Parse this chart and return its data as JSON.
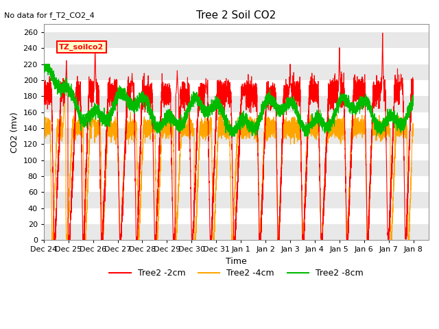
{
  "title": "Tree 2 Soil CO2",
  "no_data_text": "No data for f_T2_CO2_4",
  "legend_label_text": "TZ_soilco2",
  "xlabel": "Time",
  "ylabel": "CO2 (mv)",
  "ylim": [
    0,
    270
  ],
  "yticks": [
    0,
    20,
    40,
    60,
    80,
    100,
    120,
    140,
    160,
    180,
    200,
    220,
    240,
    260
  ],
  "xlim": [
    0,
    375
  ],
  "xtick_positions": [
    0,
    24,
    48,
    72,
    96,
    120,
    144,
    168,
    192,
    216,
    240,
    264,
    288,
    312,
    336,
    360
  ],
  "xtick_labels": [
    "Dec 24",
    "Dec 25",
    "Dec 26",
    "Dec 27",
    "Dec 28",
    "Dec 29",
    "Dec 30",
    "Dec 31",
    "Jan 1",
    "Jan 2",
    "Jan 3",
    "Jan 4",
    "Jan 5",
    "Jan 6",
    "Jan 7",
    "Jan 8"
  ],
  "line_2cm_color": "#ff0000",
  "line_4cm_color": "#ffa500",
  "line_8cm_color": "#00bb00",
  "legend_entries": [
    "Tree2 -2cm",
    "Tree2 -4cm",
    "Tree2 -8cm"
  ],
  "band_color": "#e8e8e8",
  "band_pairs": [
    [
      0,
      20
    ],
    [
      40,
      60
    ],
    [
      80,
      100
    ],
    [
      120,
      140
    ],
    [
      160,
      180
    ],
    [
      200,
      220
    ],
    [
      240,
      260
    ]
  ]
}
